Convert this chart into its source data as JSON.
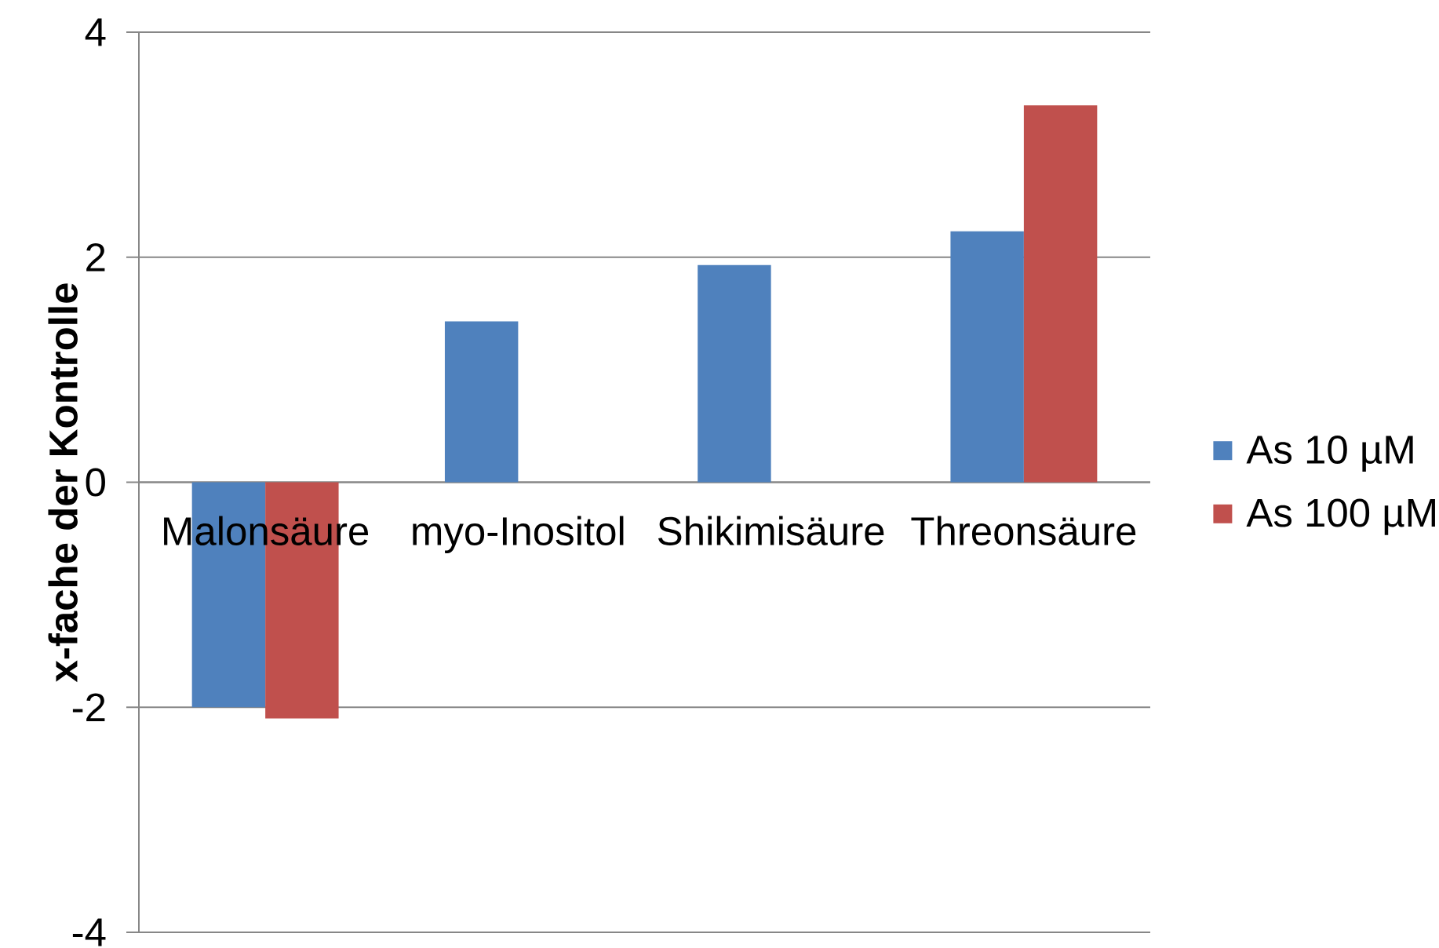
{
  "chart_data": {
    "type": "bar",
    "ylabel": "x-fache der Kontrolle",
    "categories": [
      "Malonsäure",
      "myo-Inositol",
      "Shikimisäure",
      "Threonsäure"
    ],
    "series": [
      {
        "name": "As 10 µM",
        "color": "#4f81bd",
        "values": [
          -2.0,
          1.43,
          1.93,
          2.23
        ]
      },
      {
        "name": "As 100 µM",
        "color": "#c0504d",
        "values": [
          -2.1,
          null,
          null,
          3.35
        ]
      }
    ],
    "ylim": [
      -4,
      4
    ],
    "yticks": [
      -4,
      -2,
      0,
      2,
      4
    ],
    "grid": "y",
    "legend": "right"
  }
}
